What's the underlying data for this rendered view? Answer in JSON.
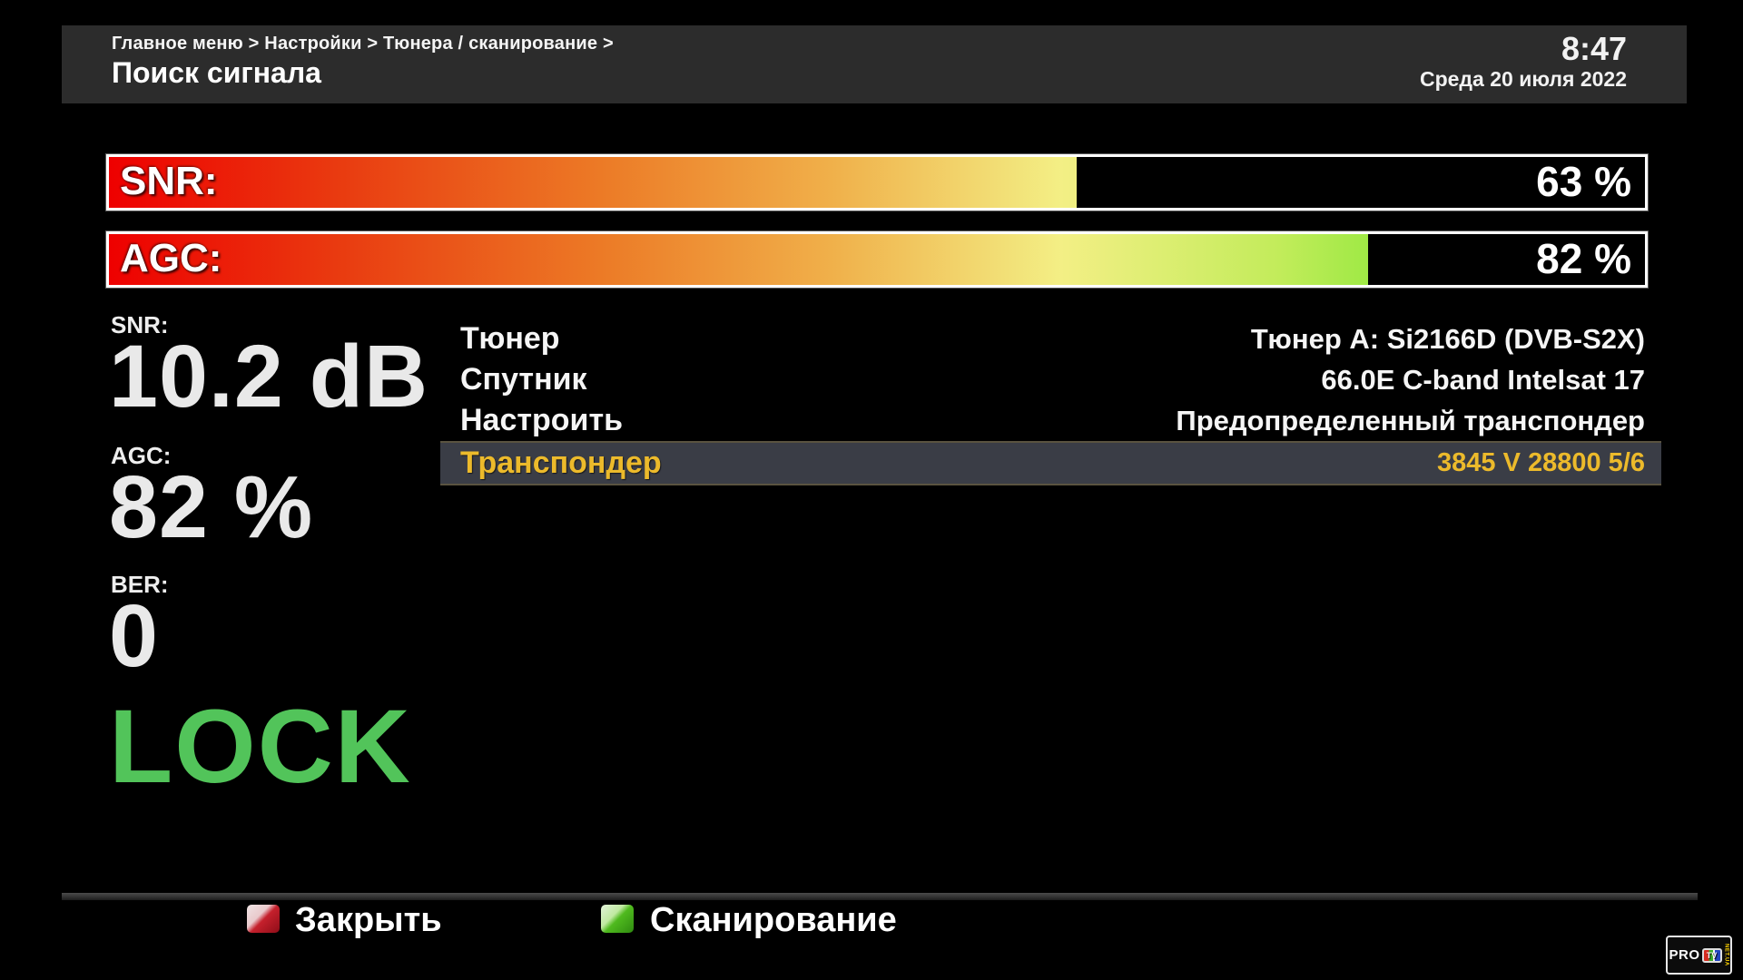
{
  "header": {
    "breadcrumb": "Главное меню > Настройки > Тюнера / сканирование >",
    "title": "Поиск сигнала",
    "time": "8:47",
    "date": "Среда 20 июля 2022"
  },
  "bars": [
    {
      "label": "SNR:",
      "value": "63 %",
      "percent": 63
    },
    {
      "label": "AGC:",
      "value": "82 %",
      "percent": 82
    }
  ],
  "stats": [
    {
      "label": "SNR:",
      "value": "10.2 dB"
    },
    {
      "label": "AGC:",
      "value": "82 %"
    },
    {
      "label": "BER:",
      "value": "0"
    }
  ],
  "lock_status": "LOCK",
  "menu": {
    "rows": [
      {
        "label": "Тюнер",
        "value": "Тюнер A: Si2166D (DVB-S2X)",
        "selected": false
      },
      {
        "label": "Спутник",
        "value": "66.0E C-band Intelsat 17",
        "selected": false
      },
      {
        "label": "Настроить",
        "value": "Предопределенный транспондер",
        "selected": false
      },
      {
        "label": "Транспондер",
        "value": "3845 V 28800 5/6",
        "selected": true
      }
    ]
  },
  "footer": {
    "buttons": [
      {
        "key": "red",
        "label": "Закрыть"
      },
      {
        "key": "green",
        "label": "Сканирование"
      }
    ]
  },
  "logo": {
    "pro": "PRO",
    "tv": "TV",
    "suffix": "NET.UA"
  },
  "colors": {
    "header_bg": "#2c2c2c",
    "lock_green": "#52c45a",
    "selected_yellow": "#ecba2b",
    "selected_row_bg": "#3a3d46",
    "bar_gradient_start": "#ee0000",
    "bar_gradient_mid": "#f3ef85",
    "bar_gradient_end": "#43d714"
  }
}
